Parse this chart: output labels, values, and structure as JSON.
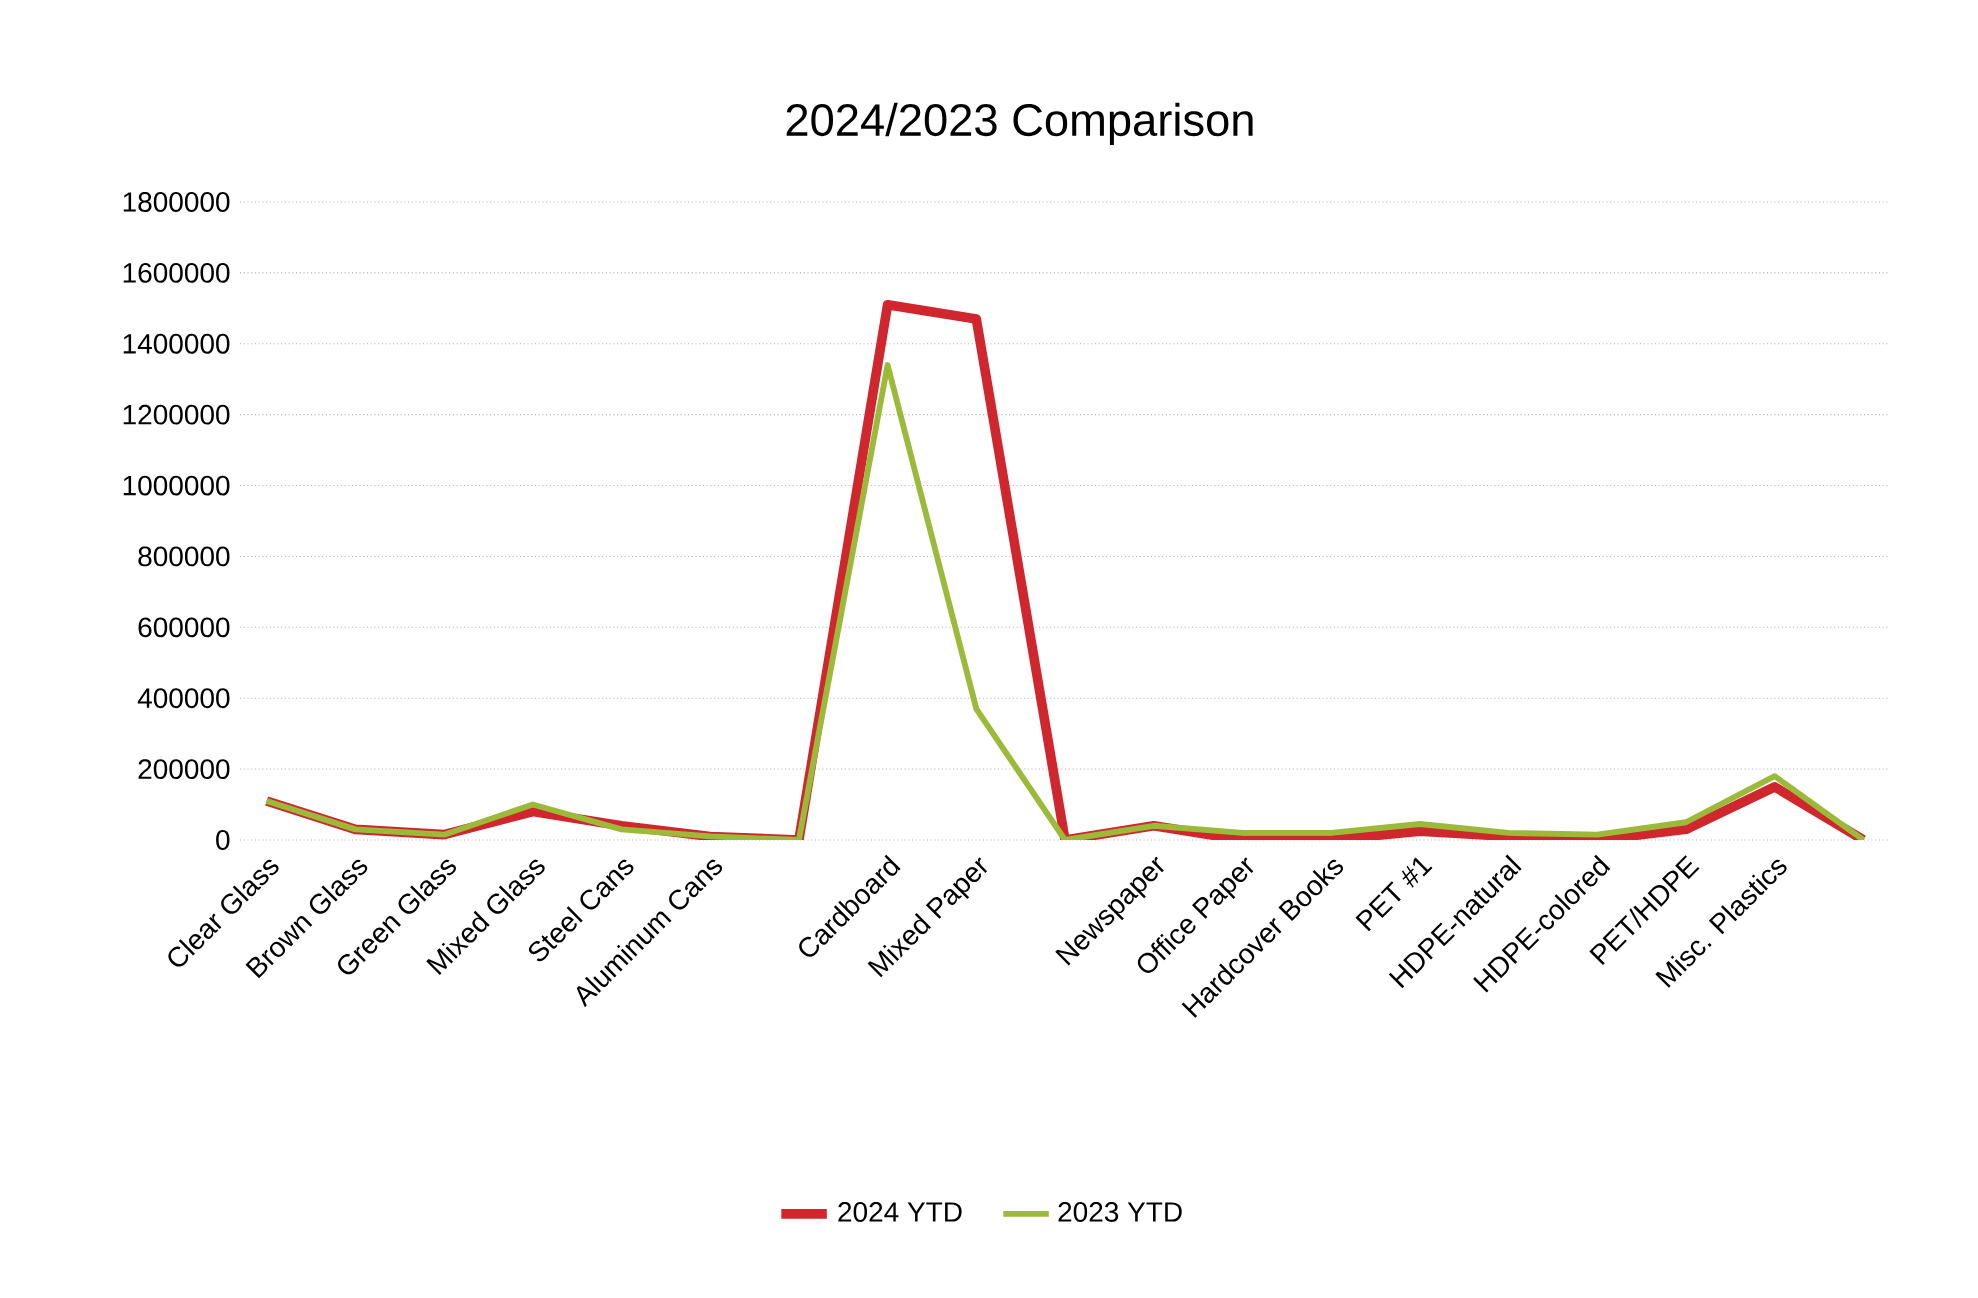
{
  "chart_data": {
    "type": "line",
    "title": "2024/2023 Comparison",
    "categories": [
      "Clear Glass",
      "Brown Glass",
      "Green Glass",
      "Mixed Glass",
      "Steel Cans",
      "Aluminum Cans",
      null,
      "Cardboard",
      "Mixed Paper",
      null,
      "Newspaper",
      "Office Paper",
      "Hardcover Books",
      "PET #1",
      "HDPE-natural",
      "HDPE-colored",
      "PET/HDPE",
      "Misc. Plastics",
      null
    ],
    "series": [
      {
        "name": "2024 YTD",
        "color": "#d0262e",
        "values": [
          110000,
          30000,
          15000,
          80000,
          40000,
          10000,
          0,
          1510000,
          1470000,
          0,
          40000,
          0,
          0,
          25000,
          10000,
          0,
          30000,
          150000,
          0
        ]
      },
      {
        "name": "2023 YTD",
        "color": "#9cba3a",
        "values": [
          110000,
          30000,
          15000,
          100000,
          30000,
          10000,
          0,
          1340000,
          370000,
          0,
          40000,
          20000,
          20000,
          45000,
          20000,
          15000,
          50000,
          180000,
          0
        ]
      }
    ],
    "ylim": [
      0,
      1800000
    ],
    "yticks": [
      0,
      200000,
      400000,
      600000,
      800000,
      1000000,
      1200000,
      1400000,
      1600000,
      1800000
    ],
    "grid": "y",
    "legend": "bottom",
    "marker": "none",
    "line_style": "solid"
  }
}
